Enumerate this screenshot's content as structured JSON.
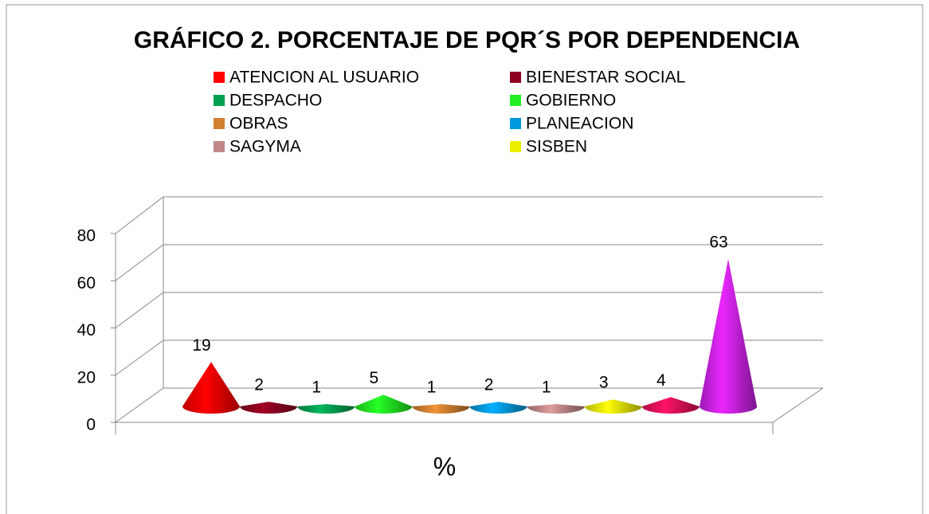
{
  "chart_data": {
    "type": "cone",
    "title": "GRÁFICO 2. PORCENTAJE DE PQR´S POR DEPENDENCIA",
    "categories": [
      "%"
    ],
    "series": [
      {
        "name": "ATENCION AL USUARIO",
        "color": "#ff0000",
        "values": [
          19
        ]
      },
      {
        "name": "BIENESTAR SOCIAL",
        "color": "#8b0020",
        "values": [
          2
        ]
      },
      {
        "name": "DESPACHO",
        "color": "#00a050",
        "values": [
          1
        ]
      },
      {
        "name": "GOBIERNO",
        "color": "#22ee22",
        "values": [
          5
        ]
      },
      {
        "name": "OBRAS",
        "color": "#d08030",
        "values": [
          1
        ]
      },
      {
        "name": "PLANEACION",
        "color": "#0099dd",
        "values": [
          2
        ]
      },
      {
        "name": "SAGYMA",
        "color": "#c08888",
        "values": [
          1
        ]
      },
      {
        "name": "SISBEN",
        "color": "#eeee00",
        "values": [
          3
        ]
      },
      {
        "color": "#e8105a",
        "values": [
          4
        ]
      },
      {
        "color": "#cc22ee",
        "values": [
          63
        ]
      }
    ],
    "ylim": [
      0,
      80
    ],
    "yticks": [
      0,
      20,
      40,
      60,
      80
    ],
    "grid": true,
    "legend": "top"
  }
}
